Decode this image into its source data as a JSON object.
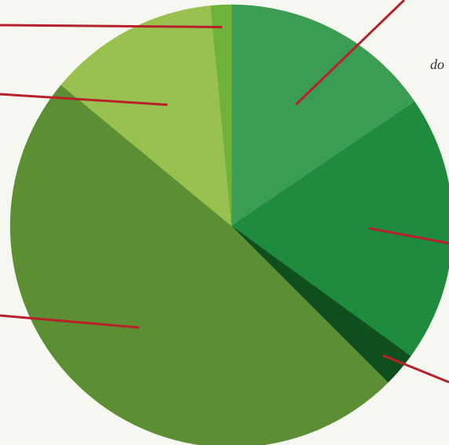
{
  "chart_data": {
    "type": "pie",
    "title": "",
    "fragment_text": "do",
    "slices": [
      {
        "value": 15.5,
        "color": "#3a9d52"
      },
      {
        "value": 19.5,
        "color": "#1f8b3c"
      },
      {
        "value": 2.5,
        "color": "#0f4f1e"
      },
      {
        "value": 48.5,
        "color": "#5c8f34"
      },
      {
        "value": 12.5,
        "color": "#99c14f"
      },
      {
        "value": 1.5,
        "color": "#6fb23a"
      }
    ],
    "start_angle_deg": 0,
    "leader_color": "#b8202a"
  }
}
